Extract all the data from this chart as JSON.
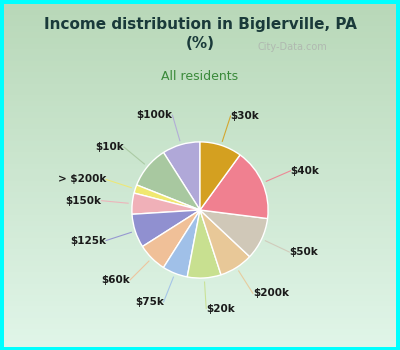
{
  "title": "Income distribution in Biglerville, PA\n(%)",
  "subtitle": "All residents",
  "background_color": "#00ffff",
  "labels": [
    "$100k",
    "$10k",
    "> $200k",
    "$150k",
    "$125k",
    "$60k",
    "$75k",
    "$20k",
    "$200k",
    "$50k",
    "$40k",
    "$30k"
  ],
  "values": [
    9,
    10,
    2,
    5,
    8,
    7,
    6,
    8,
    8,
    10,
    17,
    10
  ],
  "colors": [
    "#b0a8d8",
    "#a8c8a0",
    "#f0e870",
    "#f0b0b8",
    "#9090d0",
    "#f0c098",
    "#a0c0e8",
    "#c8e090",
    "#e8c898",
    "#d0c8b8",
    "#f08090",
    "#d4a020"
  ],
  "title_color": "#1a3a3a",
  "subtitle_color": "#3a8a3a",
  "label_color": "#1a1a1a",
  "watermark": "City-Data.com"
}
